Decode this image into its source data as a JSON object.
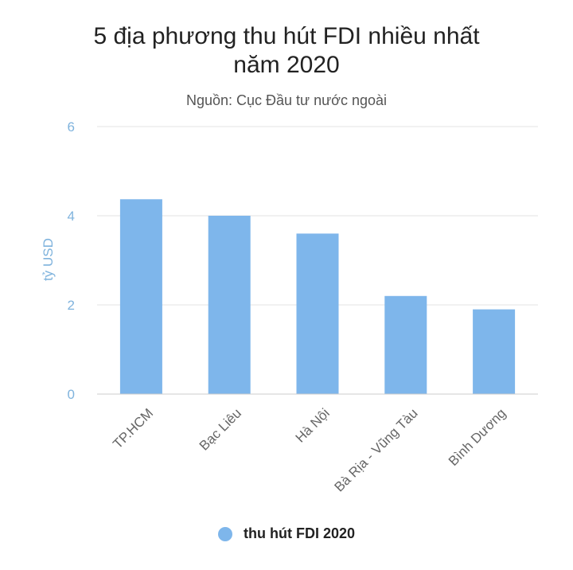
{
  "chart_data": {
    "type": "bar",
    "title_line1": "5 địa phương thu hút FDI nhiều nhất",
    "title_line2": "năm 2020",
    "subtitle": "Nguồn: Cục Đầu tư nước ngoài",
    "ylabel": "tỷ USD",
    "xlabel": "",
    "ylim": [
      0,
      6
    ],
    "yticks": [
      0,
      2,
      4,
      6
    ],
    "categories": [
      "TP.HCM",
      "Bạc Liêu",
      "Hà Nội",
      "Bà Rịa - Vũng Tàu",
      "Bình Dương"
    ],
    "series": [
      {
        "name": "thu hút FDI 2020",
        "values": [
          4.37,
          4.0,
          3.6,
          2.2,
          1.9
        ]
      }
    ],
    "grid": true,
    "legend": "bottom",
    "colors": {
      "bar": "#7eb6eb",
      "axis_text": "#7fb3dd",
      "grid": "#e3e3e3"
    }
  }
}
